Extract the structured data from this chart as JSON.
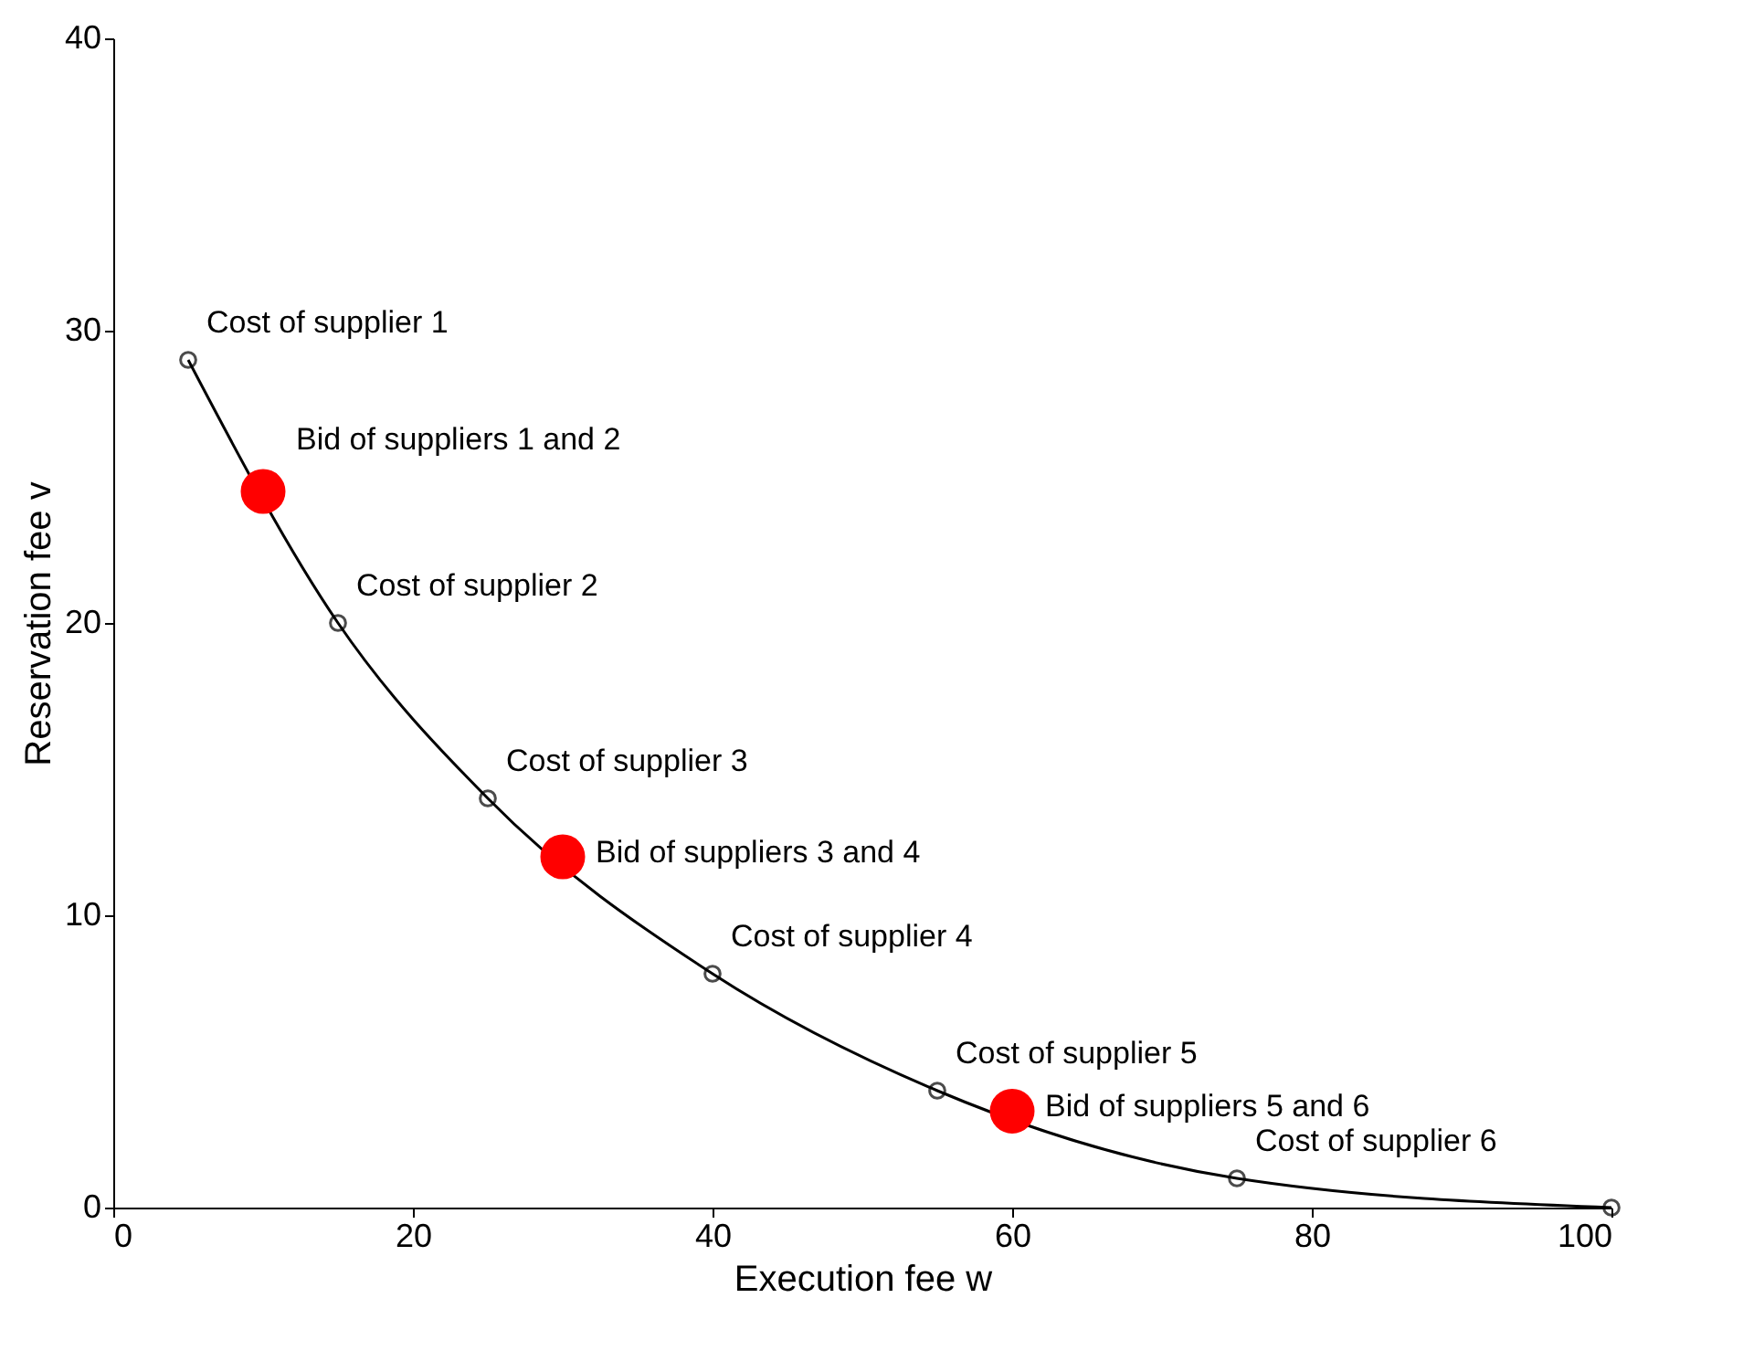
{
  "chart_data": {
    "type": "line",
    "xlabel": "Execution fee w",
    "ylabel": "Reservation fee v",
    "series": [
      {
        "color": "#000000",
        "marker": "circle",
        "x": [
          5,
          15,
          25,
          40,
          55,
          75,
          100
        ],
        "values": [
          29,
          20,
          14,
          8,
          4,
          1,
          0
        ]
      },
      {
        "type": "scatter",
        "color": "#ff0000",
        "marker": "circle",
        "x": [
          10,
          30,
          60
        ],
        "values": [
          24.5,
          12,
          3.3
        ]
      }
    ],
    "annotations": [
      {
        "text": "Cost of supplier 1",
        "x": 5,
        "y": 29
      },
      {
        "text": "Bid of suppliers 1 and 2",
        "x": 10,
        "y": 24.5
      },
      {
        "text": "Cost of supplier 2",
        "x": 15,
        "y": 20
      },
      {
        "text": "Cost of supplier 3",
        "x": 25,
        "y": 14
      },
      {
        "text": "Bid of suppliers 3 and 4",
        "x": 30,
        "y": 12
      },
      {
        "text": "Cost of supplier 4",
        "x": 40,
        "y": 8
      },
      {
        "text": "Cost of supplier 5",
        "x": 55,
        "y": 4
      },
      {
        "text": "Bid of suppliers 5 and 6",
        "x": 60,
        "y": 3.3
      },
      {
        "text": "Cost of supplier 6",
        "x": 75,
        "y": 1
      }
    ],
    "xlim": [
      0,
      100
    ],
    "xticks": [
      0,
      20,
      40,
      60,
      80,
      100
    ],
    "ylim": [
      0,
      40
    ],
    "yticks": [
      0,
      10,
      20,
      30,
      40
    ],
    "grid": false,
    "line_style": "solid"
  }
}
